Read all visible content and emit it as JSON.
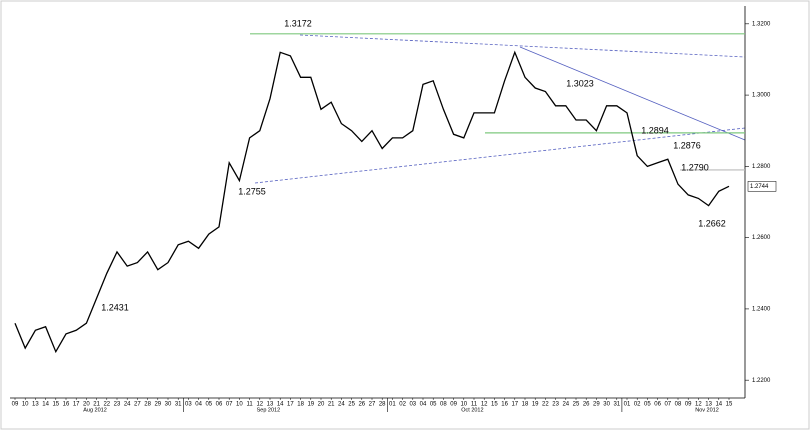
{
  "chart_data": {
    "type": "line",
    "categories": [
      "09",
      "10",
      "13",
      "14",
      "15",
      "16",
      "17",
      "20",
      "21",
      "22",
      "23",
      "24",
      "27",
      "28",
      "29",
      "30",
      "31",
      "03",
      "04",
      "05",
      "06",
      "07",
      "10",
      "11",
      "12",
      "13",
      "14",
      "17",
      "18",
      "19",
      "20",
      "21",
      "24",
      "25",
      "26",
      "27",
      "28",
      "01",
      "02",
      "03",
      "04",
      "05",
      "08",
      "09",
      "10",
      "11",
      "12",
      "15",
      "16",
      "17",
      "18",
      "19",
      "22",
      "23",
      "24",
      "25",
      "26",
      "29",
      "30",
      "31",
      "01",
      "02",
      "05",
      "06",
      "07",
      "08",
      "09",
      "12",
      "13",
      "14",
      "15"
    ],
    "month_labels": [
      "Aug 2012",
      "Sep 2012",
      "Oct 2012",
      "Nov 2012"
    ],
    "values": [
      1.236,
      1.229,
      1.234,
      1.235,
      1.228,
      1.233,
      1.234,
      1.236,
      1.243,
      1.25,
      1.256,
      1.252,
      1.253,
      1.256,
      1.251,
      1.253,
      1.258,
      1.259,
      1.257,
      1.261,
      1.263,
      1.281,
      1.276,
      1.288,
      1.29,
      1.299,
      1.312,
      1.311,
      1.305,
      1.305,
      1.296,
      1.298,
      1.292,
      1.29,
      1.287,
      1.29,
      1.285,
      1.288,
      1.288,
      1.29,
      1.303,
      1.304,
      1.296,
      1.289,
      1.288,
      1.295,
      1.295,
      1.295,
      1.304,
      1.312,
      1.305,
      1.302,
      1.301,
      1.297,
      1.297,
      1.293,
      1.293,
      1.29,
      1.297,
      1.297,
      1.295,
      1.283,
      1.28,
      1.281,
      1.282,
      1.275,
      1.272,
      1.271,
      1.269,
      1.273,
      1.2744
    ],
    "color": "#000000",
    "ylim": [
      1.215,
      1.325
    ],
    "yticks": [
      {
        "value": 1.22,
        "label": "1.2200"
      },
      {
        "value": 1.24,
        "label": "1.2400"
      },
      {
        "value": 1.26,
        "label": "1.2600"
      },
      {
        "value": 1.28,
        "label": "1.2800"
      },
      {
        "value": 1.3,
        "label": "1.3000"
      },
      {
        "value": 1.32,
        "label": "1.3200"
      }
    ],
    "levels": [
      {
        "value": 1.3172,
        "color": "#7fc97f"
      },
      {
        "value": 1.2894,
        "color": "#7fc97f"
      },
      {
        "value": 1.279,
        "color": "#bbbbbb"
      }
    ],
    "annotations": [
      "1.3172",
      "1.3023",
      "1.2894",
      "1.2876",
      "1.2790",
      "1.2755",
      "1.2662",
      "1.2431"
    ],
    "last_label": "1.2744"
  }
}
